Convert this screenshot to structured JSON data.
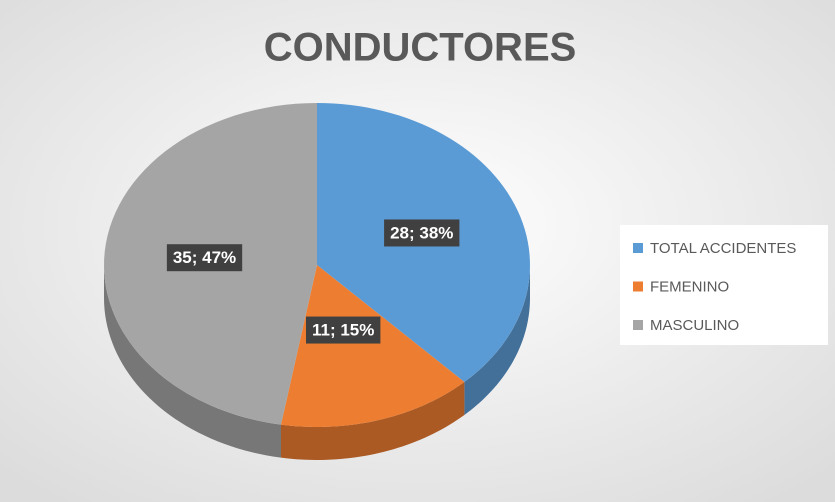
{
  "chart_data": {
    "type": "pie",
    "title": "CONDUCTORES",
    "categories": [
      "TOTAL ACCIDENTES",
      "FEMENINO",
      "MASCULINO"
    ],
    "values": [
      28,
      11,
      35
    ],
    "value_labels": [
      "28; 38%",
      "11; 15%",
      "35; 47%"
    ],
    "colors": [
      "#5b9bd5",
      "#ed7d31",
      "#a5a5a5"
    ],
    "legend": "right"
  }
}
